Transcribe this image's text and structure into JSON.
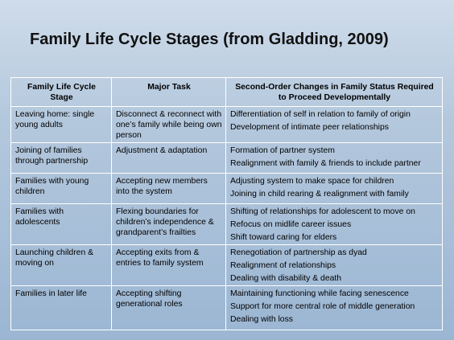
{
  "title": "Family Life Cycle Stages (from Gladding, 2009)",
  "table": {
    "headers": [
      "Family Life Cycle Stage",
      "Major Task",
      "Second-Order Changes in Family Status Required to Proceed Developmentally"
    ],
    "rows": [
      {
        "stage": "Leaving home: single young adults",
        "task": "Disconnect & reconnect with one’s family while being own person",
        "changes": [
          "Differentiation of self in relation to family of origin",
          "Development of intimate peer relationships"
        ]
      },
      {
        "stage": "Joining of families through partnership",
        "task": "Adjustment & adaptation",
        "changes": [
          "Formation of partner system",
          "Realignment with family & friends to include partner"
        ]
      },
      {
        "stage": "Families with young children",
        "task": "Accepting new members into the system",
        "changes": [
          "Adjusting system to make space for children",
          "Joining in child rearing & realignment with family"
        ]
      },
      {
        "stage": "Families with adolescents",
        "task": "Flexing boundaries for children’s independence & grandparent’s frailties",
        "changes": [
          "Shifting of relationships for adolescent to move on",
          "Refocus on midlife career issues",
          "Shift toward caring for elders"
        ]
      },
      {
        "stage": "Launching children & moving on",
        "task": "Accepting exits from & entries to family system",
        "changes": [
          "Renegotiation of partnership as dyad",
          "Realignment of relationships",
          "Dealing with disability & death"
        ]
      },
      {
        "stage": "Families in later life",
        "task": "Accepting shifting generational roles",
        "changes": [
          "Maintaining functioning while facing senescence",
          "Support for more central role of middle generation",
          "Dealing with loss"
        ]
      }
    ]
  }
}
